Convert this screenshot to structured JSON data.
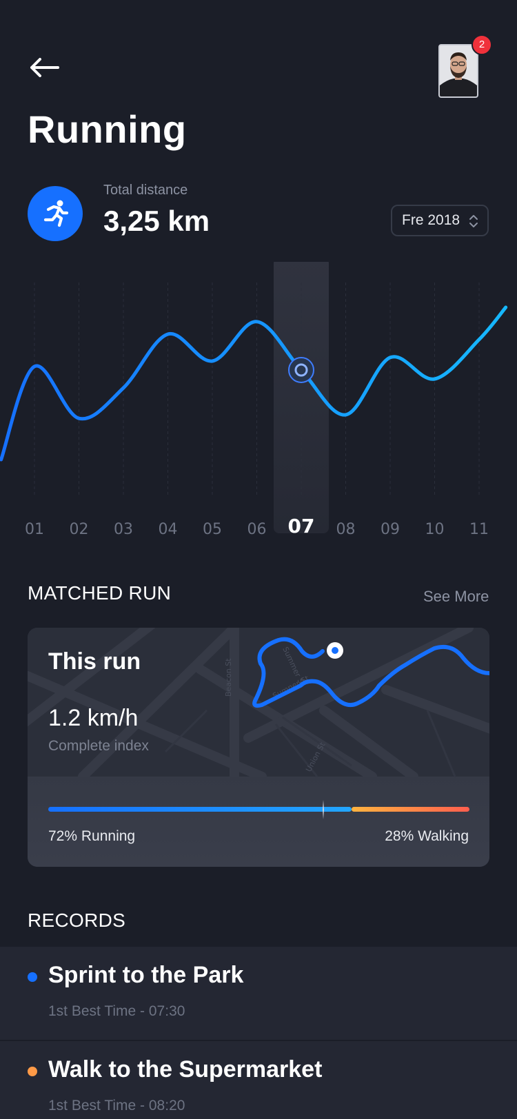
{
  "header": {
    "title": "Running",
    "notification_count": "2"
  },
  "stats": {
    "label": "Total distance",
    "value": "3,25 km",
    "period": "Fre 2018"
  },
  "chart_data": {
    "type": "line",
    "x": [
      "01",
      "02",
      "03",
      "04",
      "05",
      "06",
      "07",
      "08",
      "09",
      "10",
      "11"
    ],
    "selected": "07",
    "series": [
      {
        "values": [
          0.57,
          0.28,
          0.45,
          0.75,
          0.6,
          0.82,
          0.55,
          0.3,
          0.62,
          0.5,
          0.72
        ]
      }
    ],
    "grid": true,
    "line_color": "#1670ff",
    "line_color_end": "#16b8ff"
  },
  "matched_run": {
    "section_title": "MATCHED RUN",
    "see_more": "See More",
    "title": "This run",
    "speed": "1.2 km/h",
    "speed_label": "Complete index",
    "running_pct": 72,
    "walking_pct": 28,
    "running_label": "72% Running",
    "walking_label": "28% Walking",
    "map_streets": [
      "Beacon St",
      "Beacon St",
      "Summer St",
      "Sumner St",
      "Union St"
    ]
  },
  "records": {
    "section_title": "RECORDS",
    "items": [
      {
        "title": "Sprint to the Park",
        "subtitle": "1st Best Time  - 07:30",
        "color": "#1670ff"
      },
      {
        "title": "Walk to the Supermarket",
        "subtitle": "1st Best Time  - 08:20",
        "color": "#ff9a47"
      }
    ]
  },
  "icons": {
    "back": "arrow-left-icon",
    "runner": "runner-icon",
    "select": "chevron-updown-icon"
  },
  "colors": {
    "background": "#1b1e28",
    "accent": "#1670ff",
    "walking": "#ff9a47",
    "badge": "#f0313b"
  }
}
